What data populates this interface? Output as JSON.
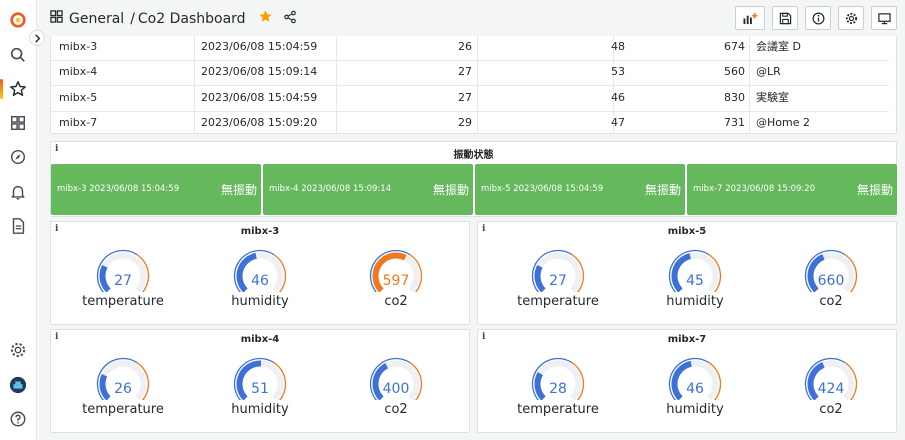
{
  "breadcrumb": {
    "folder": "General",
    "separator": "/",
    "title": "Co2 Dashboard"
  },
  "colors": {
    "green": "#65b85c",
    "blue": "#3d71d9",
    "orange": "#f2781d",
    "accent_star": "#ff9900"
  },
  "table": {
    "rows": [
      [
        "mibx-3",
        "2023/06/08 15:04:59",
        "26",
        "48",
        "674",
        "会議室 D"
      ],
      [
        "mibx-4",
        "2023/06/08 15:09:14",
        "27",
        "53",
        "560",
        "@LR"
      ],
      [
        "mibx-5",
        "2023/06/08 15:04:59",
        "27",
        "46",
        "830",
        "実験室"
      ],
      [
        "mibx-7",
        "2023/06/08 15:09:20",
        "29",
        "47",
        "731",
        "@Home 2"
      ]
    ]
  },
  "vibration": {
    "title": "振動状態",
    "info": "i",
    "items": [
      {
        "label": "mibx-3 2023/06/08 15:04:59",
        "status": "無振動"
      },
      {
        "label": "mibx-4 2023/06/08 15:09:14",
        "status": "無振動"
      },
      {
        "label": "mibx-5 2023/06/08 15:04:59",
        "status": "無振動"
      },
      {
        "label": "mibx-7 2023/06/08 15:09:20",
        "status": "無振動"
      }
    ]
  },
  "gauge_panels": [
    {
      "title": "mibx-3",
      "info": "i",
      "gauges": [
        {
          "label": "temperature",
          "value": "27",
          "level": 0.27,
          "color": "blue"
        },
        {
          "label": "humidity",
          "value": "46",
          "level": 0.46,
          "color": "blue"
        },
        {
          "label": "co2",
          "value": "597",
          "level": 0.6,
          "color": "orange"
        }
      ]
    },
    {
      "title": "mibx-5",
      "info": "i",
      "gauges": [
        {
          "label": "temperature",
          "value": "27",
          "level": 0.27,
          "color": "blue"
        },
        {
          "label": "humidity",
          "value": "45",
          "level": 0.45,
          "color": "blue"
        },
        {
          "label": "co2",
          "value": "660",
          "level": 0.42,
          "color": "blue"
        }
      ]
    },
    {
      "title": "mibx-4",
      "info": "i",
      "gauges": [
        {
          "label": "temperature",
          "value": "26",
          "level": 0.26,
          "color": "blue"
        },
        {
          "label": "humidity",
          "value": "51",
          "level": 0.51,
          "color": "blue"
        },
        {
          "label": "co2",
          "value": "400",
          "level": 0.4,
          "color": "blue"
        }
      ]
    },
    {
      "title": "mibx-7",
      "info": "i",
      "gauges": [
        {
          "label": "temperature",
          "value": "28",
          "level": 0.28,
          "color": "blue"
        },
        {
          "label": "humidity",
          "value": "46",
          "level": 0.46,
          "color": "blue"
        },
        {
          "label": "co2",
          "value": "424",
          "level": 0.42,
          "color": "blue"
        }
      ]
    }
  ],
  "icons": {
    "sidebar": [
      "grafana-logo-icon",
      "search-icon",
      "star-icon",
      "dashboards-icon",
      "explore-icon",
      "alerting-icon",
      "reports-icon",
      "settings-icon",
      "user-avatar-icon",
      "help-icon"
    ],
    "toolbar": [
      "add-panel-icon",
      "save-icon",
      "info-icon",
      "settings-icon",
      "tv-mode-icon"
    ]
  }
}
